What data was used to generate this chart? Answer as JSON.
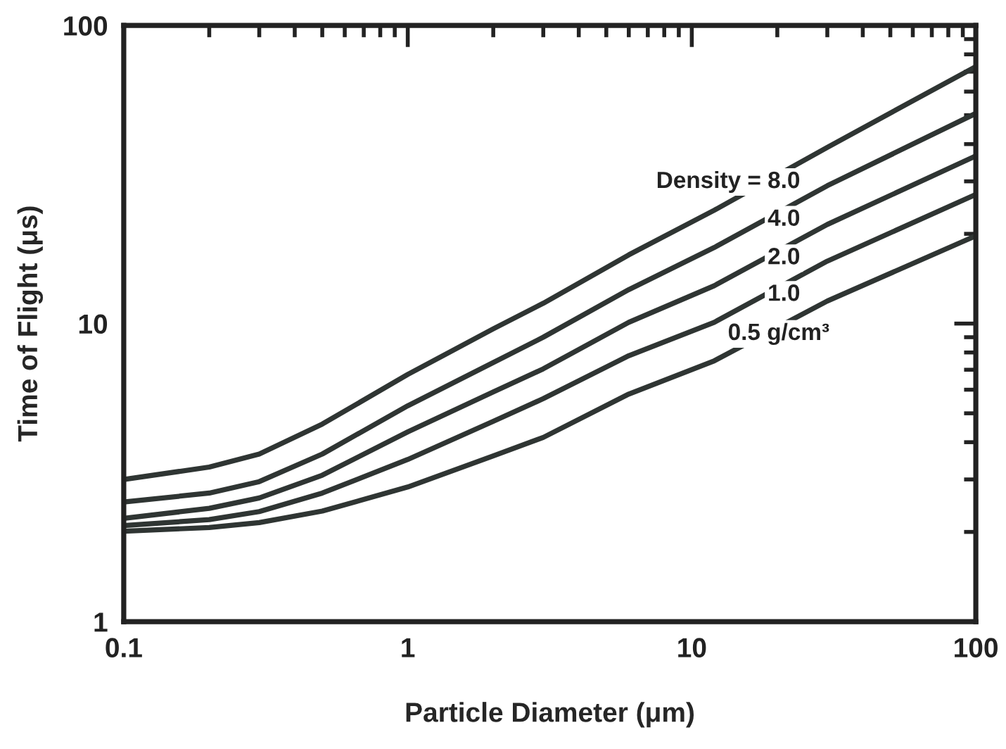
{
  "chart_data": {
    "type": "line",
    "xlabel": "Particle Diameter (μm)",
    "ylabel": "Time of Flight (μs)",
    "x": [
      0.1,
      0.2,
      0.3,
      0.5,
      1,
      2,
      3,
      6,
      12,
      30,
      100
    ],
    "series": [
      {
        "name": "Density = 8.0",
        "color": "#2f3533",
        "values": [
          3.0,
          3.3,
          3.65,
          4.6,
          6.75,
          9.6,
          11.7,
          17,
          24,
          39,
          72.8
        ]
      },
      {
        "name": "4.0",
        "color": "#2f3533",
        "values": [
          2.52,
          2.7,
          2.95,
          3.65,
          5.3,
          7.4,
          9.0,
          13,
          18,
          29,
          50.7
        ]
      },
      {
        "name": "2.0",
        "color": "#2f3533",
        "values": [
          2.22,
          2.4,
          2.6,
          3.1,
          4.33,
          5.9,
          7.05,
          10.1,
          13.4,
          21.5,
          36.5
        ]
      },
      {
        "name": "1.0",
        "color": "#2f3533",
        "values": [
          2.1,
          2.2,
          2.34,
          2.7,
          3.5,
          4.7,
          5.6,
          7.8,
          10.1,
          16.2,
          27.1
        ]
      },
      {
        "name": "0.5 g/cm³",
        "color": "#2f3533",
        "values": [
          2.01,
          2.07,
          2.15,
          2.35,
          2.83,
          3.6,
          4.15,
          5.8,
          7.5,
          11.9,
          19.7
        ]
      }
    ],
    "log": "xy",
    "xlim": [
      0.1,
      100
    ],
    "ylim": [
      1,
      100
    ],
    "xticks": [
      0.1,
      1,
      10,
      100
    ],
    "yticks": [
      1,
      10,
      100
    ],
    "grid": false,
    "legend": false,
    "marker": "none",
    "line_style": "solid"
  }
}
